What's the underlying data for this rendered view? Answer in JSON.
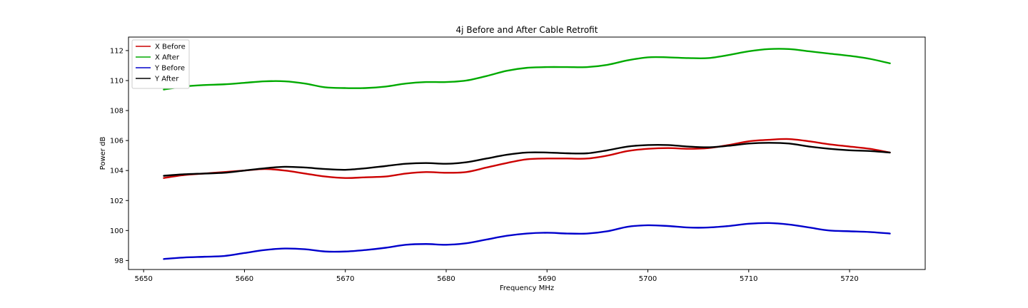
{
  "chart_data": {
    "type": "line",
    "title": "4j Before and After Cable Retrofit",
    "xlabel": "Frequency MHz",
    "ylabel": "Power dB",
    "xlim": [
      5648.5,
      5727.5
    ],
    "ylim": [
      97.4,
      112.9
    ],
    "xticks": [
      5650,
      5660,
      5670,
      5680,
      5690,
      5700,
      5710,
      5720
    ],
    "yticks": [
      98,
      100,
      102,
      104,
      106,
      108,
      110,
      112
    ],
    "grid": false,
    "legend_position": "top-left",
    "x": [
      5652,
      5654,
      5656,
      5658,
      5660,
      5662,
      5664,
      5666,
      5668,
      5670,
      5672,
      5674,
      5676,
      5678,
      5680,
      5682,
      5684,
      5686,
      5688,
      5690,
      5692,
      5694,
      5696,
      5698,
      5700,
      5702,
      5704,
      5706,
      5708,
      5710,
      5712,
      5714,
      5716,
      5718,
      5720,
      5722,
      5724
    ],
    "series": [
      {
        "name": "X Before",
        "color": "#cc0000",
        "values": [
          103.5,
          103.7,
          103.8,
          103.9,
          104.0,
          104.1,
          104.0,
          103.8,
          103.6,
          103.5,
          103.55,
          103.6,
          103.8,
          103.9,
          103.85,
          103.9,
          104.2,
          104.5,
          104.75,
          104.8,
          104.8,
          104.8,
          105.0,
          105.3,
          105.45,
          105.5,
          105.45,
          105.5,
          105.7,
          105.95,
          106.05,
          106.1,
          105.95,
          105.75,
          105.6,
          105.45,
          105.2
        ]
      },
      {
        "name": "X After",
        "color": "#00aa00",
        "values": [
          109.4,
          109.6,
          109.7,
          109.75,
          109.85,
          109.95,
          109.95,
          109.8,
          109.55,
          109.5,
          109.5,
          109.6,
          109.8,
          109.9,
          109.9,
          110.0,
          110.3,
          110.65,
          110.85,
          110.9,
          110.9,
          110.9,
          111.05,
          111.35,
          111.55,
          111.55,
          111.5,
          111.5,
          111.7,
          111.95,
          112.1,
          112.1,
          111.95,
          111.8,
          111.65,
          111.45,
          111.15
        ]
      },
      {
        "name": "Y Before",
        "color": "#0000cc",
        "values": [
          98.1,
          98.2,
          98.25,
          98.3,
          98.5,
          98.7,
          98.8,
          98.75,
          98.6,
          98.6,
          98.7,
          98.85,
          99.05,
          99.1,
          99.05,
          99.15,
          99.4,
          99.65,
          99.8,
          99.85,
          99.8,
          99.8,
          99.95,
          100.25,
          100.35,
          100.3,
          100.2,
          100.2,
          100.3,
          100.45,
          100.5,
          100.4,
          100.2,
          100.0,
          99.95,
          99.9,
          99.8
        ]
      },
      {
        "name": "Y After",
        "color": "#000000",
        "values": [
          103.65,
          103.75,
          103.8,
          103.85,
          104.0,
          104.15,
          104.25,
          104.2,
          104.1,
          104.05,
          104.15,
          104.3,
          104.45,
          104.5,
          104.45,
          104.55,
          104.8,
          105.05,
          105.2,
          105.2,
          105.15,
          105.15,
          105.35,
          105.6,
          105.7,
          105.7,
          105.6,
          105.55,
          105.65,
          105.8,
          105.85,
          105.8,
          105.6,
          105.45,
          105.35,
          105.3,
          105.2
        ]
      }
    ]
  }
}
